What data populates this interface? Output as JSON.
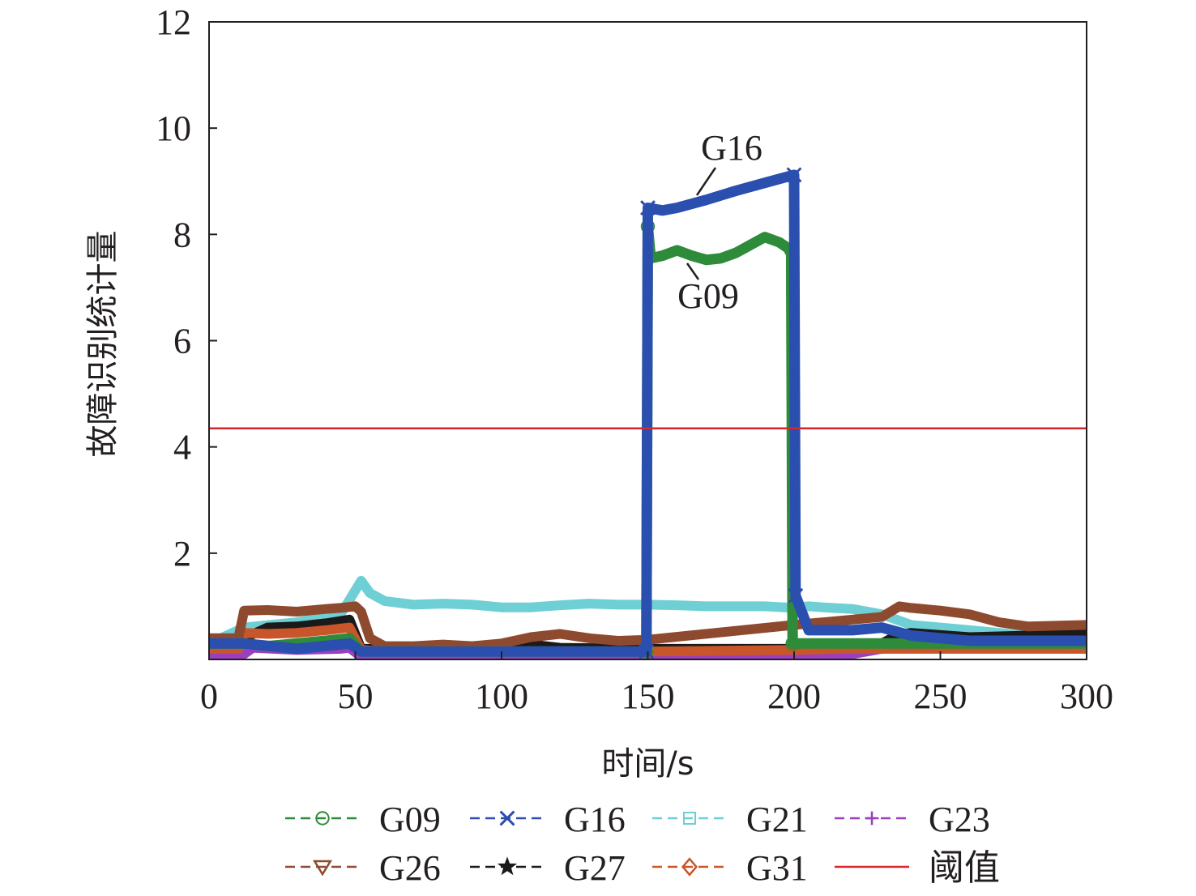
{
  "chart_data": {
    "type": "line",
    "title": "",
    "xlabel": "时间/s",
    "ylabel": "故障识别统计量",
    "xlim": [
      0,
      300
    ],
    "ylim": [
      0,
      12
    ],
    "x_ticks": [
      0,
      50,
      100,
      150,
      200,
      250,
      300
    ],
    "y_ticks": [
      2,
      4,
      6,
      8,
      10,
      12
    ],
    "grid": false,
    "legend_position": "bottom",
    "threshold": {
      "name": "阈值",
      "value": 4.35,
      "color": "#d7262e"
    },
    "annotations": [
      {
        "text": "G16",
        "x": 167,
        "y": 8.7
      },
      {
        "text": "G09",
        "x": 163,
        "y": 7.4
      }
    ],
    "series": [
      {
        "name": "G09",
        "color": "#2e8b3a",
        "marker": "circle",
        "x": [
          0,
          12,
          20,
          30,
          40,
          48,
          52,
          60,
          100,
          149.5,
          150,
          151,
          155,
          160,
          165,
          170,
          175,
          180,
          185,
          190,
          195,
          199,
          199.5,
          200,
          205,
          220,
          240,
          260,
          280,
          300
        ],
        "y": [
          0.3,
          0.3,
          0.25,
          0.3,
          0.35,
          0.4,
          0.15,
          0.15,
          0.15,
          0.15,
          8.15,
          7.55,
          7.6,
          7.7,
          7.6,
          7.52,
          7.55,
          7.65,
          7.8,
          7.95,
          7.85,
          7.7,
          0.3,
          0.3,
          0.3,
          0.3,
          0.3,
          0.3,
          0.3,
          0.3
        ]
      },
      {
        "name": "G16",
        "color": "#2b4fae",
        "marker": "x",
        "x": [
          0,
          12,
          30,
          48,
          52,
          100,
          149.5,
          150,
          155,
          160,
          170,
          180,
          190,
          200,
          200.5,
          205,
          220,
          230,
          240,
          250,
          260,
          280,
          300
        ],
        "y": [
          0.3,
          0.3,
          0.2,
          0.3,
          0.15,
          0.15,
          0.15,
          8.5,
          8.45,
          8.5,
          8.65,
          8.82,
          8.97,
          9.12,
          1.2,
          0.55,
          0.55,
          0.6,
          0.45,
          0.4,
          0.35,
          0.35,
          0.35
        ]
      },
      {
        "name": "G21",
        "color": "#6ecfd4",
        "marker": "square",
        "x": [
          0,
          12,
          30,
          45,
          50,
          52,
          55,
          60,
          70,
          80,
          90,
          100,
          110,
          120,
          130,
          140,
          150,
          160,
          170,
          180,
          190,
          200,
          205,
          210,
          220,
          230,
          240,
          250,
          260,
          270,
          280,
          300
        ],
        "y": [
          0.3,
          0.6,
          0.7,
          0.85,
          1.3,
          1.48,
          1.25,
          1.1,
          1.03,
          1.05,
          1.03,
          0.98,
          0.98,
          1.02,
          1.05,
          1.03,
          1.03,
          1.02,
          1.0,
          1.0,
          1.0,
          0.97,
          1.0,
          0.98,
          0.95,
          0.85,
          0.65,
          0.6,
          0.55,
          0.5,
          0.45,
          0.4
        ]
      },
      {
        "name": "G23",
        "color": "#9a3fbe",
        "marker": "plus",
        "x": [
          0,
          12,
          15,
          30,
          45,
          48,
          52,
          100,
          200,
          220,
          230,
          240,
          300
        ],
        "y": [
          0.05,
          0.1,
          0.22,
          0.18,
          0.2,
          0.22,
          0.05,
          0.05,
          0.05,
          0.1,
          0.2,
          0.25,
          0.2
        ]
      },
      {
        "name": "G26",
        "color": "#8e4a2e",
        "marker": "triangle-down",
        "x": [
          0,
          10,
          12,
          20,
          30,
          40,
          45,
          50,
          52,
          55,
          60,
          70,
          80,
          90,
          100,
          110,
          120,
          130,
          140,
          150,
          200,
          210,
          220,
          230,
          236,
          240,
          250,
          260,
          270,
          280,
          300
        ],
        "y": [
          0.4,
          0.4,
          0.92,
          0.93,
          0.9,
          0.95,
          0.97,
          1.0,
          0.9,
          0.4,
          0.25,
          0.25,
          0.28,
          0.25,
          0.3,
          0.42,
          0.48,
          0.4,
          0.35,
          0.37,
          0.65,
          0.7,
          0.75,
          0.8,
          1.0,
          0.97,
          0.92,
          0.85,
          0.7,
          0.62,
          0.65
        ]
      },
      {
        "name": "G27",
        "color": "#1a1a1a",
        "marker": "star",
        "x": [
          0,
          12,
          20,
          30,
          40,
          48,
          52,
          60,
          80,
          100,
          110,
          120,
          150,
          200,
          210,
          230,
          235,
          240,
          260,
          280,
          300
        ],
        "y": [
          0.3,
          0.4,
          0.6,
          0.62,
          0.68,
          0.75,
          0.2,
          0.2,
          0.2,
          0.22,
          0.28,
          0.22,
          0.2,
          0.2,
          0.3,
          0.3,
          0.45,
          0.5,
          0.42,
          0.45,
          0.48
        ]
      },
      {
        "name": "G31",
        "color": "#c9562a",
        "marker": "diamond",
        "x": [
          0,
          10,
          12,
          20,
          30,
          40,
          48,
          52,
          60,
          80,
          100,
          150,
          200,
          220,
          240,
          260,
          280,
          300
        ],
        "y": [
          0.2,
          0.2,
          0.5,
          0.48,
          0.5,
          0.55,
          0.6,
          0.18,
          0.15,
          0.15,
          0.15,
          0.15,
          0.18,
          0.2,
          0.2,
          0.2,
          0.2,
          0.2
        ]
      }
    ]
  }
}
